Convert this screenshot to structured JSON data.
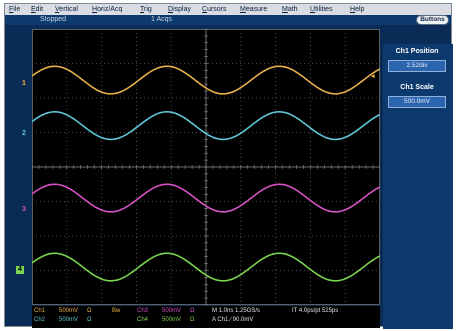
{
  "menu": {
    "items": [
      {
        "first": "F",
        "rest": "ile"
      },
      {
        "first": "E",
        "rest": "dit"
      },
      {
        "first": "V",
        "rest": "ertical"
      },
      {
        "first": "H",
        "rest": "oriz/Acq"
      },
      {
        "first": "T",
        "rest": "rig"
      },
      {
        "first": "D",
        "rest": "isplay"
      },
      {
        "first": "C",
        "rest": "ursors"
      },
      {
        "first": "M",
        "rest": "easure"
      },
      {
        "first": "M",
        "rest": "ath"
      },
      {
        "first": "U",
        "rest": "tilities"
      },
      {
        "first": "H",
        "rest": "elp"
      }
    ]
  },
  "status": {
    "mode": "Stopped",
    "acqs": "1 Acqs",
    "buttons_label": "Buttons"
  },
  "markers": {
    "ch1": "1",
    "ch2": "2",
    "ch3": "3",
    "ch4": "4",
    "trigger": "T"
  },
  "side_panel": {
    "position_title": "Ch1 Position",
    "position_value": "2.52div",
    "scale_title": "Ch1 Scale",
    "scale_value": "500.0mV"
  },
  "readout": {
    "ch1": "Ch1",
    "ch1_scale": "500mV",
    "ch1_imp": "Ω",
    "ch1_bw": "Bw",
    "ch2": "Ch2",
    "ch2_scale": "500mV",
    "ch2_imp": "Ω",
    "ch3": "Ch3",
    "ch3_scale": "500mV",
    "ch3_imp": "Ω",
    "ch4": "Ch4",
    "ch4_scale": "500mV",
    "ch4_imp": "Ω",
    "horiz": "M 1.0ns  1.25GS/s",
    "record": "IT 4.0ps/pt  525ps",
    "trigger": "A  Ch1  ∕  90.0mV"
  },
  "colors": {
    "ch1": "#e8b04a",
    "ch2": "#5fc6d8",
    "ch3": "#d452c4",
    "ch4": "#7bd44f",
    "grid": "#5f5f5f"
  },
  "waveforms": [
    {
      "channel": "1",
      "center_div": 2.52,
      "amplitude_div": 0.4,
      "cycles": 3.1,
      "phase": 0.3
    },
    {
      "channel": "2",
      "center_div": 1.2,
      "amplitude_div": 0.4,
      "cycles": 3.1,
      "phase": 0.3
    },
    {
      "channel": "3",
      "center_div": -0.9,
      "amplitude_div": 0.4,
      "cycles": 3.1,
      "phase": 0.3
    },
    {
      "channel": "4",
      "center_div": -2.9,
      "amplitude_div": 0.4,
      "cycles": 3.1,
      "phase": 0.3
    }
  ]
}
